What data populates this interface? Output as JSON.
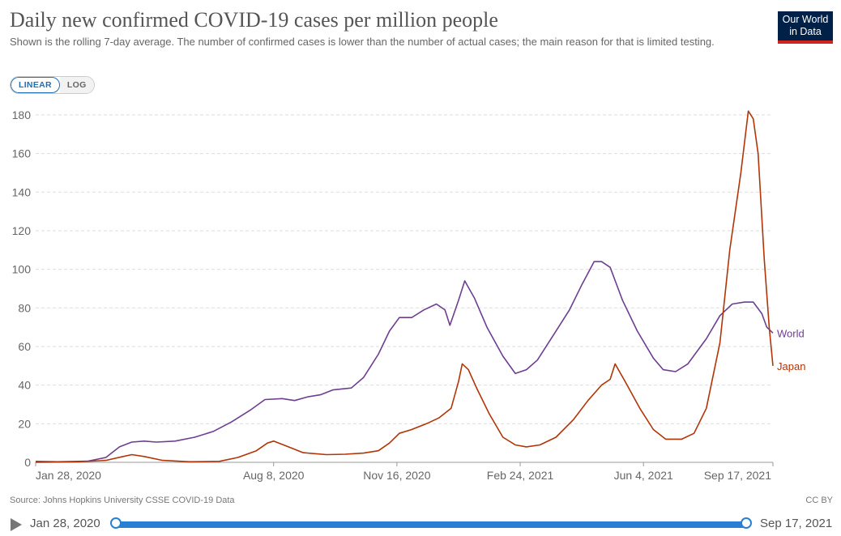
{
  "header": {
    "title": "Daily new confirmed COVID-19 cases per million people",
    "subtitle": "Shown is the rolling 7-day average. The number of confirmed cases is lower than the number of actual cases; the main reason for that is limited testing.",
    "logo_line1": "Our World",
    "logo_line2": "in Data"
  },
  "controls": {
    "linear_label": "LINEAR",
    "log_label": "LOG",
    "selected": "LINEAR"
  },
  "footer": {
    "source": "Source: Johns Hopkins University CSSE COVID-19 Data",
    "license": "CC BY"
  },
  "timeline": {
    "start_label": "Jan 28, 2020",
    "end_label": "Sep 17, 2021"
  },
  "chart_data": {
    "type": "line",
    "title": "Daily new confirmed COVID-19 cases per million people",
    "xlabel": "",
    "ylabel": "",
    "x_start": "2020-01-28",
    "x_end": "2021-09-17",
    "xlim": [
      "2020-01-28",
      "2021-09-17"
    ],
    "ylim": [
      0,
      185
    ],
    "y_ticks": [
      0,
      20,
      40,
      60,
      80,
      100,
      120,
      140,
      160,
      180
    ],
    "x_ticks": [
      {
        "date": "2020-01-28",
        "label": "Jan 28, 2020"
      },
      {
        "date": "2020-08-08",
        "label": "Aug 8, 2020"
      },
      {
        "date": "2020-11-16",
        "label": "Nov 16, 2020"
      },
      {
        "date": "2021-02-24",
        "label": "Feb 24, 2021"
      },
      {
        "date": "2021-06-04",
        "label": "Jun 4, 2021"
      },
      {
        "date": "2021-09-17",
        "label": "Sep 17, 2021"
      }
    ],
    "grid": "horizontal-dashed",
    "legend": "end-of-line labels",
    "series": [
      {
        "name": "World",
        "color": "#6d3e91",
        "points": [
          [
            "2020-01-28",
            0.5
          ],
          [
            "2020-02-15",
            0.3
          ],
          [
            "2020-03-10",
            0.6
          ],
          [
            "2020-03-25",
            2.5
          ],
          [
            "2020-04-05",
            8
          ],
          [
            "2020-04-15",
            10.5
          ],
          [
            "2020-04-25",
            11
          ],
          [
            "2020-05-05",
            10.5
          ],
          [
            "2020-05-20",
            11
          ],
          [
            "2020-06-05",
            13
          ],
          [
            "2020-06-20",
            16
          ],
          [
            "2020-07-05",
            21
          ],
          [
            "2020-07-20",
            27
          ],
          [
            "2020-08-01",
            32.5
          ],
          [
            "2020-08-15",
            33
          ],
          [
            "2020-08-25",
            32
          ],
          [
            "2020-09-05",
            34
          ],
          [
            "2020-09-15",
            35
          ],
          [
            "2020-09-25",
            37.5
          ],
          [
            "2020-10-10",
            38.5
          ],
          [
            "2020-10-20",
            44
          ],
          [
            "2020-11-01",
            56
          ],
          [
            "2020-11-10",
            68
          ],
          [
            "2020-11-18",
            75
          ],
          [
            "2020-11-28",
            75
          ],
          [
            "2020-12-08",
            79
          ],
          [
            "2020-12-18",
            82
          ],
          [
            "2020-12-25",
            79
          ],
          [
            "2020-12-29",
            71
          ],
          [
            "2021-01-05",
            84
          ],
          [
            "2021-01-10",
            94
          ],
          [
            "2021-01-18",
            85
          ],
          [
            "2021-01-28",
            70
          ],
          [
            "2021-02-10",
            55
          ],
          [
            "2021-02-20",
            46
          ],
          [
            "2021-03-01",
            48
          ],
          [
            "2021-03-10",
            53
          ],
          [
            "2021-03-25",
            68
          ],
          [
            "2021-04-05",
            79
          ],
          [
            "2021-04-15",
            92
          ],
          [
            "2021-04-25",
            104
          ],
          [
            "2021-05-01",
            104
          ],
          [
            "2021-05-08",
            101
          ],
          [
            "2021-05-18",
            84
          ],
          [
            "2021-05-30",
            68
          ],
          [
            "2021-06-12",
            54
          ],
          [
            "2021-06-20",
            48
          ],
          [
            "2021-06-30",
            47
          ],
          [
            "2021-07-10",
            51
          ],
          [
            "2021-07-25",
            64
          ],
          [
            "2021-08-05",
            76
          ],
          [
            "2021-08-15",
            82
          ],
          [
            "2021-08-25",
            83
          ],
          [
            "2021-09-01",
            83
          ],
          [
            "2021-09-08",
            77
          ],
          [
            "2021-09-12",
            70
          ],
          [
            "2021-09-17",
            67
          ]
        ],
        "end_label": "World"
      },
      {
        "name": "Japan",
        "color": "#b13507",
        "points": [
          [
            "2020-01-28",
            0
          ],
          [
            "2020-03-01",
            0.2
          ],
          [
            "2020-03-25",
            1
          ],
          [
            "2020-04-08",
            3
          ],
          [
            "2020-04-15",
            4
          ],
          [
            "2020-04-25",
            3
          ],
          [
            "2020-05-10",
            1
          ],
          [
            "2020-06-01",
            0.3
          ],
          [
            "2020-06-25",
            0.5
          ],
          [
            "2020-07-10",
            2.5
          ],
          [
            "2020-07-25",
            6
          ],
          [
            "2020-08-03",
            10
          ],
          [
            "2020-08-08",
            11
          ],
          [
            "2020-08-20",
            8
          ],
          [
            "2020-09-01",
            5
          ],
          [
            "2020-09-20",
            4
          ],
          [
            "2020-10-05",
            4.2
          ],
          [
            "2020-10-20",
            4.8
          ],
          [
            "2020-11-01",
            6
          ],
          [
            "2020-11-10",
            10
          ],
          [
            "2020-11-18",
            15
          ],
          [
            "2020-11-28",
            17
          ],
          [
            "2020-12-10",
            20
          ],
          [
            "2020-12-20",
            23
          ],
          [
            "2020-12-30",
            28
          ],
          [
            "2021-01-05",
            42
          ],
          [
            "2021-01-08",
            51
          ],
          [
            "2021-01-13",
            48
          ],
          [
            "2021-01-20",
            38
          ],
          [
            "2021-01-30",
            25
          ],
          [
            "2021-02-10",
            13
          ],
          [
            "2021-02-20",
            9
          ],
          [
            "2021-03-01",
            8
          ],
          [
            "2021-03-12",
            9
          ],
          [
            "2021-03-25",
            13
          ],
          [
            "2021-04-08",
            22
          ],
          [
            "2021-04-20",
            32
          ],
          [
            "2021-05-01",
            40
          ],
          [
            "2021-05-08",
            43
          ],
          [
            "2021-05-12",
            51
          ],
          [
            "2021-05-20",
            42
          ],
          [
            "2021-06-01",
            28
          ],
          [
            "2021-06-12",
            17
          ],
          [
            "2021-06-22",
            12
          ],
          [
            "2021-07-05",
            12
          ],
          [
            "2021-07-15",
            15
          ],
          [
            "2021-07-25",
            28
          ],
          [
            "2021-08-05",
            62
          ],
          [
            "2021-08-13",
            110
          ],
          [
            "2021-08-22",
            150
          ],
          [
            "2021-08-28",
            182
          ],
          [
            "2021-09-01",
            178
          ],
          [
            "2021-09-05",
            160
          ],
          [
            "2021-09-10",
            105
          ],
          [
            "2021-09-14",
            70
          ],
          [
            "2021-09-17",
            50
          ]
        ],
        "end_label": "Japan"
      }
    ]
  }
}
